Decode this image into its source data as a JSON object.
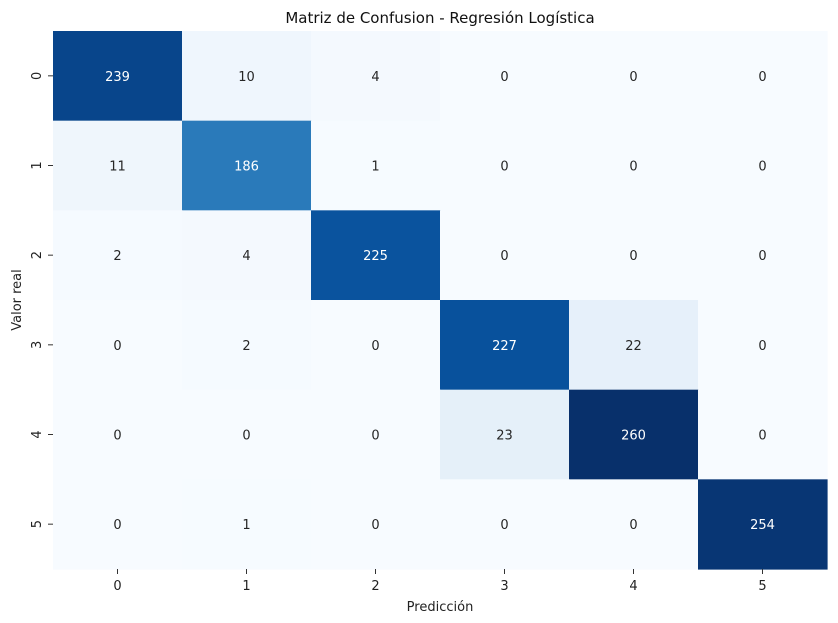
{
  "chart_data": {
    "type": "heatmap",
    "title": "Matriz de Confusion - Regresión Logística",
    "xlabel": "Predicción",
    "ylabel": "Valor real",
    "x_categories": [
      "0",
      "1",
      "2",
      "3",
      "4",
      "5"
    ],
    "y_categories": [
      "0",
      "1",
      "2",
      "3",
      "4",
      "5"
    ],
    "values": [
      [
        239,
        10,
        4,
        0,
        0,
        0
      ],
      [
        11,
        186,
        1,
        0,
        0,
        0
      ],
      [
        2,
        4,
        225,
        0,
        0,
        0
      ],
      [
        0,
        2,
        0,
        227,
        22,
        0
      ],
      [
        0,
        0,
        0,
        23,
        260,
        0
      ],
      [
        0,
        1,
        0,
        0,
        0,
        254
      ]
    ],
    "colormap": "Blues",
    "colorbar": false,
    "grid": false,
    "colors": {
      "low": "#f7fbff",
      "high": "#08306b"
    }
  }
}
